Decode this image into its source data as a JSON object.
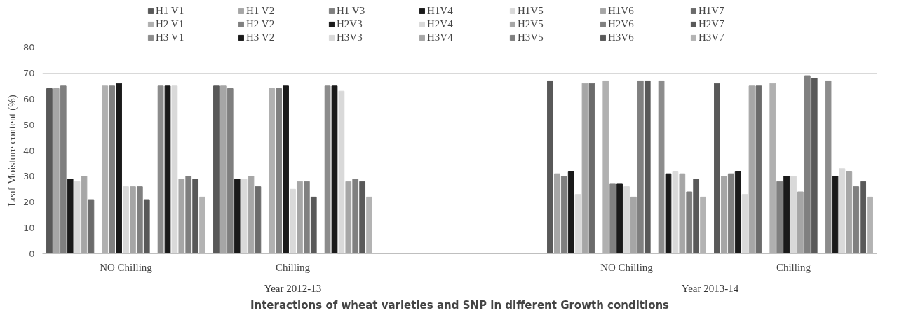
{
  "chart_data": {
    "type": "bar",
    "xlabel": "Interactions of wheat varieties and SNP in different Growth conditions",
    "ylabel": "Leaf Moisture content (%)",
    "categories": [
      "NO Chilling",
      "Chilling",
      null,
      "NO Chilling",
      "Chilling"
    ],
    "annotations": [
      "Year 2012-13",
      "Year 2013-14"
    ],
    "ylim": [
      0,
      80
    ],
    "yticks": [
      0,
      10,
      20,
      30,
      40,
      50,
      60,
      70,
      80
    ],
    "grid": "y",
    "legend": "top",
    "series": [
      {
        "name": "H1 V1",
        "color": "#595959",
        "values": [
          64,
          65,
          null,
          67,
          66
        ]
      },
      {
        "name": "H1 V2",
        "color": "#a6a6a6",
        "values": [
          64,
          65,
          null,
          31,
          30
        ]
      },
      {
        "name": "H1 V3",
        "color": "#7f7f7f",
        "values": [
          65,
          64,
          null,
          30,
          31
        ]
      },
      {
        "name": "H1V4",
        "color": "#1a1a1a",
        "values": [
          29,
          29,
          null,
          32,
          32
        ]
      },
      {
        "name": "H1V5",
        "color": "#d9d9d9",
        "values": [
          28,
          29,
          null,
          23,
          23
        ]
      },
      {
        "name": "H1V6",
        "color": "#a6a6a6",
        "values": [
          30,
          30,
          null,
          66,
          65
        ]
      },
      {
        "name": "H1V7",
        "color": "#6b6b6b",
        "values": [
          21,
          26,
          null,
          66,
          65
        ]
      },
      {
        "name": "H2 V1",
        "color": "#b0b0b0",
        "values": [
          65,
          64,
          null,
          67,
          66
        ]
      },
      {
        "name": "H2 V2",
        "color": "#808080",
        "values": [
          65,
          64,
          null,
          27,
          28
        ]
      },
      {
        "name": "H2V3",
        "color": "#1a1a1a",
        "values": [
          66,
          65,
          null,
          27,
          30
        ]
      },
      {
        "name": "H2V4",
        "color": "#d9d9d9",
        "values": [
          26,
          25,
          null,
          26,
          30
        ]
      },
      {
        "name": "H2V5",
        "color": "#a6a6a6",
        "values": [
          26,
          28,
          null,
          22,
          24
        ]
      },
      {
        "name": "H2V6",
        "color": "#808080",
        "values": [
          26,
          28,
          null,
          67,
          69
        ]
      },
      {
        "name": "H2V7",
        "color": "#595959",
        "values": [
          21,
          22,
          null,
          67,
          68
        ]
      },
      {
        "name": "H3 V1",
        "color": "#8c8c8c",
        "values": [
          65,
          65,
          null,
          67,
          67
        ]
      },
      {
        "name": "H3 V2",
        "color": "#1a1a1a",
        "values": [
          65,
          65,
          null,
          31,
          30
        ]
      },
      {
        "name": "H3V3",
        "color": "#d9d9d9",
        "values": [
          65,
          63,
          null,
          32,
          33
        ]
      },
      {
        "name": "H3V4",
        "color": "#a6a6a6",
        "values": [
          29,
          28,
          null,
          31,
          32
        ]
      },
      {
        "name": "H3V5",
        "color": "#7f7f7f",
        "values": [
          30,
          29,
          null,
          24,
          26
        ]
      },
      {
        "name": "H3V6",
        "color": "#595959",
        "values": [
          29,
          28,
          null,
          29,
          28
        ]
      },
      {
        "name": "H3V7",
        "color": "#b3b3b3",
        "values": [
          22,
          22,
          null,
          22,
          22
        ]
      }
    ]
  }
}
